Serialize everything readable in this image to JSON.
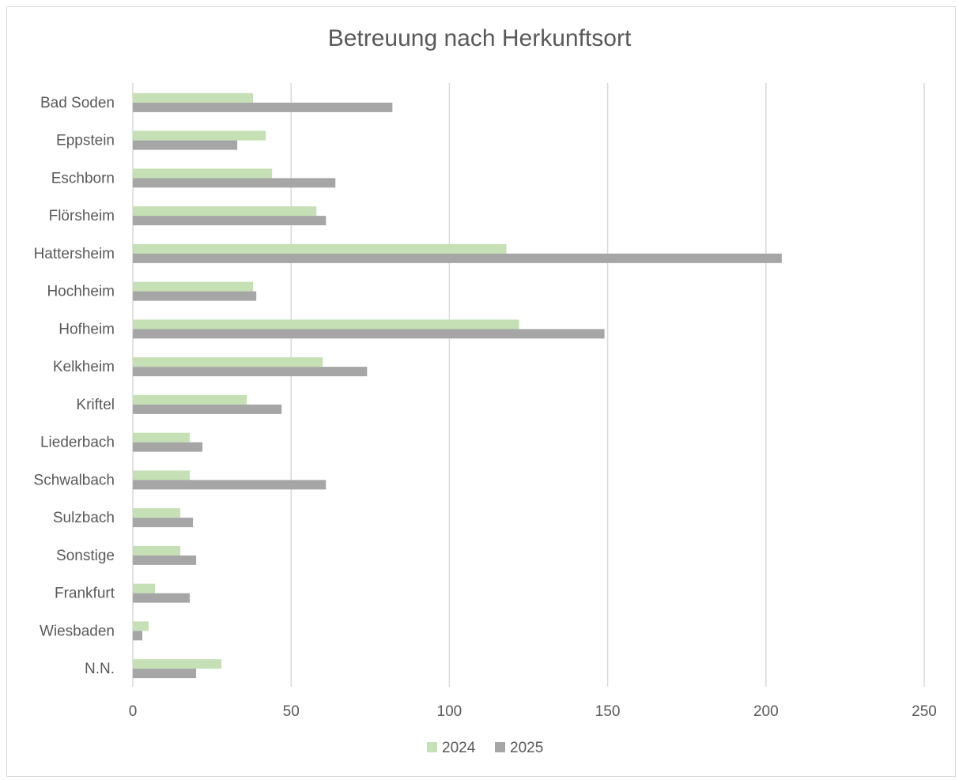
{
  "chart_data": {
    "type": "bar",
    "orientation": "horizontal",
    "title": "Betreuung nach Herkunftsort",
    "xlabel": "",
    "ylabel": "",
    "xlim": [
      0,
      250
    ],
    "x_ticks": [
      0,
      50,
      100,
      150,
      200,
      250
    ],
    "grid": "vertical",
    "legend_position": "bottom",
    "categories": [
      "Bad Soden",
      "Eppstein",
      "Eschborn",
      "Flörsheim",
      "Hattersheim",
      "Hochheim",
      "Hofheim",
      "Kelkheim",
      "Kriftel",
      "Liederbach",
      "Schwalbach",
      "Sulzbach",
      "Sonstige",
      "Frankfurt",
      "Wiesbaden",
      "N.N."
    ],
    "series": [
      {
        "name": "2024",
        "color": "#c5e0b4",
        "values": [
          38,
          42,
          44,
          58,
          118,
          38,
          122,
          60,
          36,
          18,
          18,
          15,
          15,
          7,
          5,
          28
        ]
      },
      {
        "name": "2025",
        "color": "#a6a6a6",
        "values": [
          82,
          33,
          64,
          61,
          205,
          39,
          149,
          74,
          47,
          22,
          61,
          19,
          20,
          18,
          3,
          20
        ]
      }
    ]
  }
}
